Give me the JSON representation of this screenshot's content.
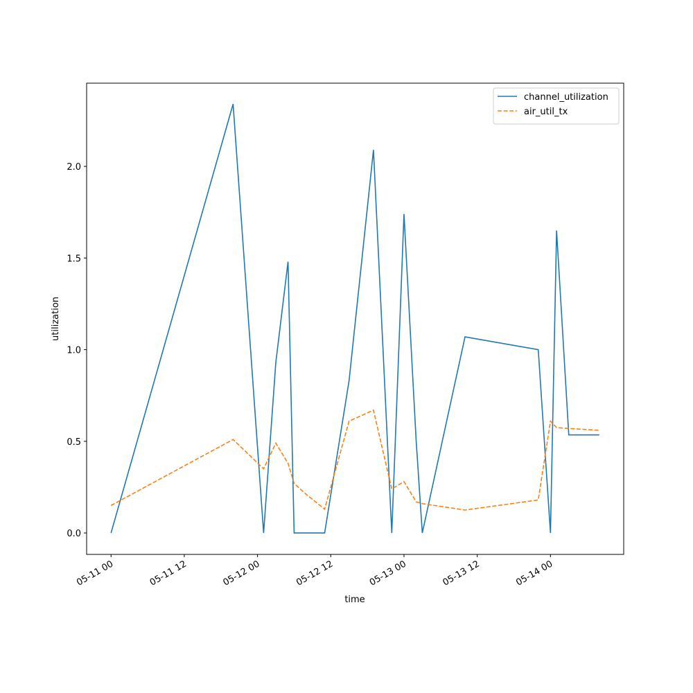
{
  "chart_data": {
    "type": "line",
    "x_label": "time",
    "y_label": "utilization",
    "x": [
      "05-11 00",
      "05-11 20",
      "05-12 01",
      "05-12 03",
      "05-12 05",
      "05-12 06",
      "05-12 08",
      "05-12 11",
      "05-12 15",
      "05-12 19",
      "05-12 22",
      "05-13 00",
      "05-13 02",
      "05-13 03",
      "05-13 10",
      "05-13 22",
      "05-14 00",
      "05-14 01",
      "05-14 03",
      "05-14 08"
    ],
    "series": [
      {
        "name": "channel_utilization",
        "color": "#1f77b4",
        "dash": "solid",
        "values": [
          0,
          2.34,
          0,
          0.93,
          1.48,
          0,
          0,
          0,
          0.83,
          2.09,
          0,
          1.74,
          0.5,
          0,
          1.07,
          1.0,
          0,
          1.65,
          0.535,
          0.535
        ]
      },
      {
        "name": "air_util_tx",
        "color": "#ff7f0e",
        "dash": "dashed",
        "values": [
          0.15,
          0.51,
          0.35,
          0.49,
          0.38,
          0.27,
          0.21,
          0.13,
          0.61,
          0.67,
          0.24,
          0.28,
          0.17,
          0.16,
          0.125,
          0.18,
          0.61,
          0.575,
          0.57,
          0.56
        ]
      }
    ],
    "xlim": [
      "05-10 20",
      "05-14 12"
    ],
    "xticks": [
      "05-11 00",
      "05-11 12",
      "05-12 00",
      "05-12 12",
      "05-13 00",
      "05-13 12",
      "05-14 00"
    ],
    "ylim": [
      -0.117,
      2.454
    ],
    "yticks": [
      {
        "value": 0,
        "label": "0.0"
      },
      {
        "value": 0.5,
        "label": "0.5"
      },
      {
        "value": 1,
        "label": "1.0"
      },
      {
        "value": 1.5,
        "label": "1.5"
      },
      {
        "value": 2,
        "label": "2.0"
      }
    ],
    "legend": "upper right",
    "grid": false
  }
}
